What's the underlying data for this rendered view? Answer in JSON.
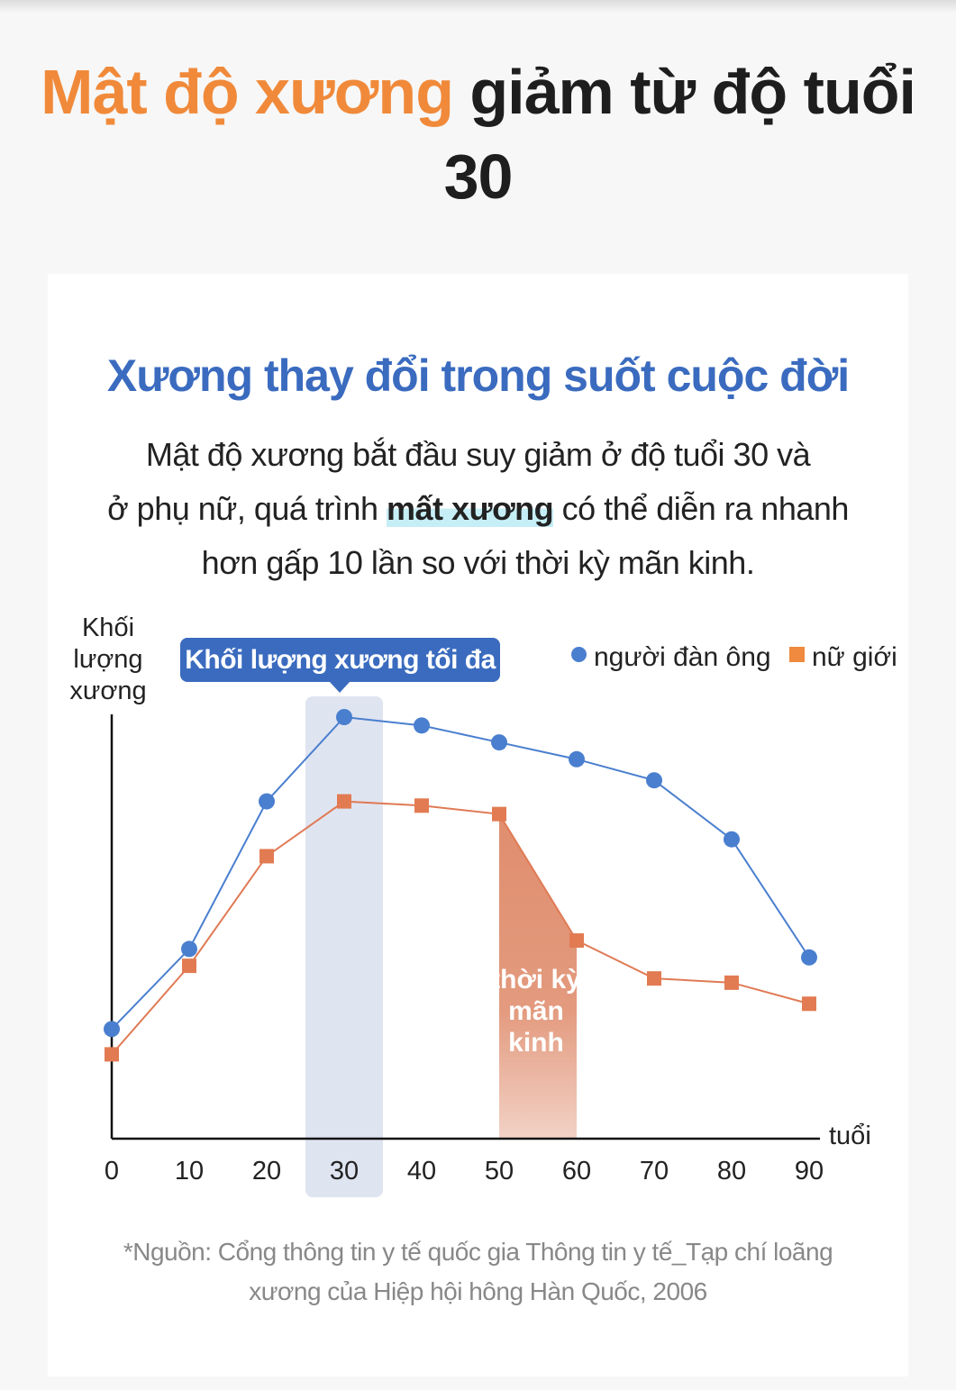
{
  "header": {
    "title_highlight": "Mật độ xương",
    "title_rest": " giảm từ độ tuổi 30"
  },
  "card": {
    "subtitle": "Xương thay đổi trong suốt cuộc đời",
    "desc_line1": "Mật độ xương bắt đầu suy giảm ở độ tuổi 30 và",
    "desc_line2_pre": "ở phụ nữ, quá trình ",
    "desc_line2_bold": "mất xương",
    "desc_line2_post": " có thể diễn ra nhanh",
    "desc_line3": "hơn gấp 10 lần so với thời kỳ mãn kinh.",
    "source_line1": "*Nguồn: Cổng thông tin y tế quốc gia Thông tin y tế_Tạp chí loãng",
    "source_line2": "xương của Hiệp hội hông Hàn Quốc, 2006"
  },
  "colors": {
    "accent_orange": "#f08a3a",
    "men": "#4a7fcf",
    "women": "#e07a55",
    "brand_blue": "#3a6bbf"
  },
  "chart_data": {
    "type": "line",
    "title": "",
    "xlabel": "tuổi",
    "ylabel": "Khối lượng xương",
    "x": [
      0,
      10,
      20,
      30,
      40,
      50,
      60,
      70,
      80,
      90
    ],
    "ylim": [
      0,
      100
    ],
    "series": [
      {
        "name": "người đàn ông",
        "marker": "circle",
        "values": [
          26,
          45,
          80,
          100,
          98,
          94,
          90,
          85,
          71,
          43
        ]
      },
      {
        "name": "nữ giới",
        "marker": "square",
        "values": [
          20,
          41,
          67,
          80,
          79,
          77,
          47,
          38,
          37,
          32
        ]
      }
    ],
    "annotations": {
      "peak_label": "Khối lượng xương tối đa",
      "peak_x": 30,
      "menopause_label_1": "thời kỳ",
      "menopause_label_2": "mãn",
      "menopause_label_3": "kinh",
      "menopause_range": [
        50,
        60
      ]
    },
    "ylabel_lines": [
      "Khối",
      "lượng",
      "xương"
    ],
    "grid": false,
    "legend_position": "top-right"
  }
}
